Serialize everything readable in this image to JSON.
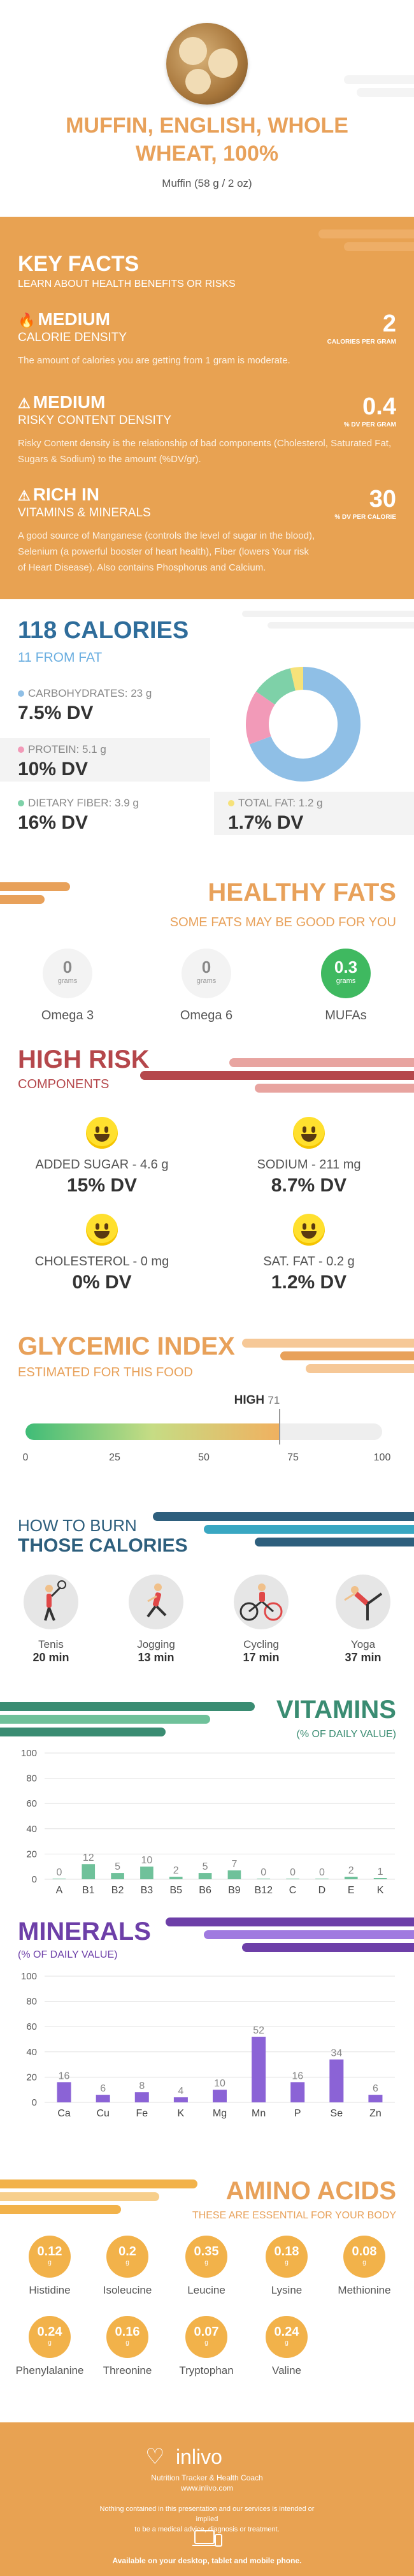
{
  "header": {
    "title_line1": "MUFFIN, ENGLISH, WHOLE",
    "title_line2": "WHEAT, 100%",
    "serving": "Muffin (58 g / 2 oz)"
  },
  "key_facts": {
    "title": "KEY FACTS",
    "subtitle": "LEARN ABOUT HEALTH BENEFITS OR RISKS",
    "items": [
      {
        "level": "MEDIUM",
        "label": "CALORIE DENSITY",
        "value": "2",
        "unit": "CALORIES PER GRAM",
        "description": "The amount of calories you are getting from 1 gram is moderate."
      },
      {
        "level": "MEDIUM",
        "label": "RISKY CONTENT DENSITY",
        "value": "0.4",
        "unit": "% DV PER GRAM",
        "description": "Risky Content density is the relationship of bad components (Cholesterol, Saturated Fat, Sugars & Sodium) to the amount (%DV/gr)."
      },
      {
        "level": "RICH IN",
        "label": "VITAMINS & MINERALS",
        "value": "30",
        "unit": "% DV PER CALORIE",
        "description_line1": "A good source of Manganese (controls the level of sugar in the blood),",
        "description_line2": "Selenium (a powerful booster of heart health), Fiber (lowers Your risk",
        "description_line3": "of Heart Disease). Also contains Phosphorus and Calcium."
      }
    ]
  },
  "calories": {
    "title": "118 CALORIES",
    "from_fat": "11 FROM FAT",
    "macros": [
      {
        "label": "CARBOHYDRATES: 23 g",
        "dv": "7.5% DV",
        "color": "#8fbfe6"
      },
      {
        "label": "PROTEIN: 5.1 g",
        "dv": "10% DV",
        "color": "#f29ab8"
      },
      {
        "label": "DIETARY FIBER: 3.9 g",
        "dv": "16% DV",
        "color": "#7ed1a8"
      },
      {
        "label": "TOTAL FAT: 1.2 g",
        "dv": "1.7% DV",
        "color": "#f6e27a"
      }
    ],
    "donut": [
      {
        "name": "Carbohydrates",
        "value": 23,
        "color": "#8fbfe6"
      },
      {
        "name": "Protein",
        "value": 5.1,
        "color": "#f29ab8"
      },
      {
        "name": "Dietary Fiber",
        "value": 3.9,
        "color": "#7ed1a8"
      },
      {
        "name": "Total Fat",
        "value": 1.2,
        "color": "#f6e27a"
      }
    ]
  },
  "healthy_fats": {
    "title": "HEALTHY FATS",
    "subtitle": "SOME FATS MAY BE GOOD FOR YOU",
    "unit": "grams",
    "items": [
      {
        "name": "Omega 3",
        "value": "0"
      },
      {
        "name": "Omega 6",
        "value": "0"
      },
      {
        "name": "MUFAs",
        "value": "0.3"
      }
    ]
  },
  "high_risk": {
    "title": "HIGH RISK",
    "subtitle": "COMPONENTS",
    "items": [
      {
        "label": "ADDED SUGAR - 4.6 g",
        "dv": "15% DV"
      },
      {
        "label": "SODIUM - 211 mg",
        "dv": "8.7% DV"
      },
      {
        "label": "CHOLESTEROL - 0 mg",
        "dv": "0% DV"
      },
      {
        "label": "SAT. FAT - 0.2 g",
        "dv": "1.2% DV"
      }
    ]
  },
  "glycemic": {
    "title": "GLYCEMIC INDEX",
    "subtitle": "ESTIMATED FOR THIS FOOD",
    "label": "HIGH",
    "value": 71,
    "value_text": "71",
    "ticks": [
      "0",
      "25",
      "50",
      "75",
      "100"
    ]
  },
  "burn": {
    "title1": "HOW TO BURN",
    "title2": "THOSE CALORIES",
    "activities": [
      {
        "name": "Tenis",
        "time": "20 min",
        "icon": "tennis-icon"
      },
      {
        "name": "Jogging",
        "time": "13 min",
        "icon": "jogging-icon"
      },
      {
        "name": "Cycling",
        "time": "17 min",
        "icon": "cycling-icon"
      },
      {
        "name": "Yoga",
        "time": "37 min",
        "icon": "yoga-icon"
      }
    ]
  },
  "vitamins": {
    "title": "VITAMINS",
    "subtitle": "(% OF DAILY VALUE)"
  },
  "minerals": {
    "title": "MINERALS",
    "subtitle": "(% OF DAILY VALUE)"
  },
  "chart_data": [
    {
      "type": "bar",
      "categories": [
        "A",
        "B1",
        "B2",
        "B3",
        "B5",
        "B6",
        "B9",
        "B12",
        "C",
        "D",
        "E",
        "K"
      ],
      "values": [
        0,
        12,
        5,
        10,
        2,
        5,
        7,
        0,
        0,
        0,
        2,
        1
      ],
      "value_labels": [
        "0",
        "12",
        "5",
        "10",
        "2",
        "5",
        "7",
        "0",
        "0",
        "0",
        "2",
        "1"
      ],
      "yticks": [
        "0",
        "20",
        "40",
        "60",
        "80",
        "100"
      ],
      "ylim": [
        0,
        100
      ],
      "grid": true,
      "color": "#6fc19a"
    },
    {
      "type": "bar",
      "categories": [
        "Ca",
        "Cu",
        "Fe",
        "K",
        "Mg",
        "Mn",
        "P",
        "Se",
        "Zn"
      ],
      "values": [
        16,
        6,
        8,
        4,
        10,
        52,
        16,
        34,
        6
      ],
      "value_labels": [
        "16",
        "6",
        "8",
        "4",
        "10",
        "52",
        "16",
        "34",
        "6"
      ],
      "yticks": [
        "0",
        "20",
        "40",
        "60",
        "80",
        "100"
      ],
      "ylim": [
        0,
        100
      ],
      "grid": true,
      "color": "#8b63d6"
    }
  ],
  "amino": {
    "title": "AMINO ACIDS",
    "subtitle": "THESE ARE ESSENTIAL FOR YOUR BODY",
    "unit": "g",
    "items": [
      {
        "name": "Histidine",
        "value": "0.12"
      },
      {
        "name": "Isoleucine",
        "value": "0.2"
      },
      {
        "name": "Leucine",
        "value": "0.35"
      },
      {
        "name": "Lysine",
        "value": "0.18"
      },
      {
        "name": "Methionine",
        "value": "0.08"
      },
      {
        "name": "Phenylalanine",
        "value": "0.24"
      },
      {
        "name": "Threonine",
        "value": "0.16"
      },
      {
        "name": "Tryptophan",
        "value": "0.07"
      },
      {
        "name": "Valine",
        "value": "0.24"
      }
    ]
  },
  "footer": {
    "brand": "inlivo",
    "tagline": "Nutrition Tracker & Health Coach",
    "url": "www.inlivo.com",
    "disclaimer_line1": "Nothing contained in this presentation and our services is intended or implied",
    "disclaimer_line2": "to be a medical advice, diagnosis or treatment.",
    "available": "Available on your desktop, tablet and mobile phone."
  }
}
